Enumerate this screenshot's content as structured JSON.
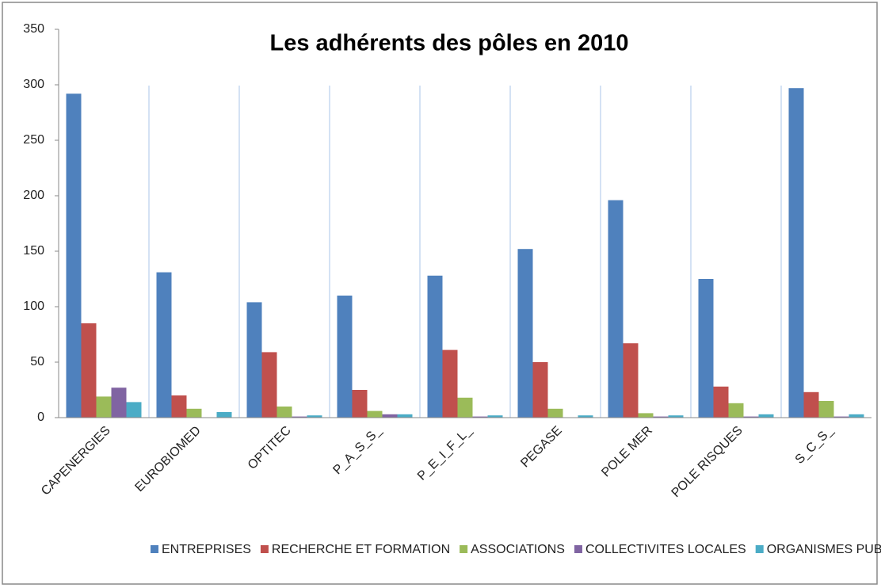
{
  "chart_data": {
    "type": "bar",
    "title": "Les adhérents des pôles en 2010",
    "categories": [
      "CAPENERGIES",
      "EUROBIOMED",
      "OPTITEC",
      "P_A_S_S_",
      "P_E_I_F_L_",
      "PEGASE",
      "POLE MER",
      "POLE RISQUES",
      "S_C_S_"
    ],
    "series": [
      {
        "name": "ENTREPRISES",
        "color": "#4f81bd",
        "values": [
          292,
          131,
          104,
          110,
          128,
          152,
          196,
          125,
          297
        ]
      },
      {
        "name": "RECHERCHE ET FORMATION",
        "color": "#c0504d",
        "values": [
          85,
          20,
          59,
          25,
          61,
          50,
          67,
          28,
          23
        ]
      },
      {
        "name": "ASSOCIATIONS",
        "color": "#9bbb59",
        "values": [
          19,
          8,
          10,
          6,
          18,
          8,
          4,
          13,
          15
        ]
      },
      {
        "name": "COLLECTIVITES LOCALES",
        "color": "#8064a2",
        "values": [
          27,
          0,
          1,
          3,
          1,
          0,
          1,
          1,
          1
        ]
      },
      {
        "name": "ORGANISMES PUBLICS",
        "color": "#4bacc6",
        "values": [
          14,
          5,
          2,
          3,
          2,
          2,
          2,
          3,
          3
        ]
      }
    ],
    "ylim": [
      0,
      350
    ],
    "yticks": [
      0,
      50,
      100,
      150,
      200,
      250,
      300,
      350
    ],
    "legend": "bottom"
  }
}
